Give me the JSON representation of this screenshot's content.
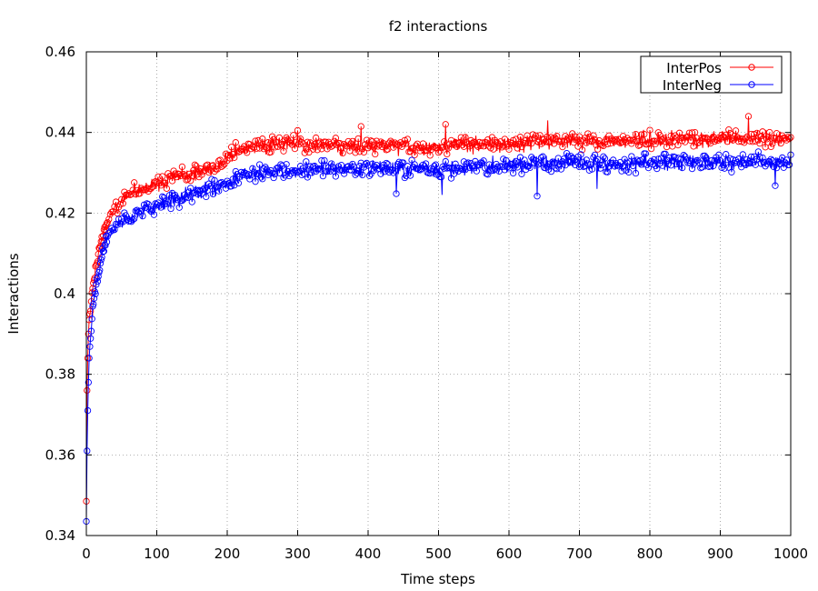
{
  "chart_data": {
    "type": "line",
    "title": "f2 interactions",
    "xlabel": "Time steps",
    "ylabel": "Interactions",
    "xlim": [
      0,
      1000
    ],
    "ylim": [
      0.34,
      0.46
    ],
    "xticks": [
      0,
      100,
      200,
      300,
      400,
      500,
      600,
      700,
      800,
      900,
      1000
    ],
    "yticks": [
      0.34,
      0.36,
      0.38,
      0.4,
      0.42,
      0.44,
      0.46
    ],
    "ytick_labels": [
      "0.34",
      "0.36",
      "0.38",
      "0.4",
      "0.42",
      "0.44",
      "0.46"
    ],
    "grid": true,
    "legend_position": "top-right",
    "marker": "open-circle",
    "series": [
      {
        "name": "InterPos",
        "color": "#ff0000",
        "x": [
          0,
          1,
          2,
          3,
          4,
          6,
          8,
          10,
          13,
          16,
          20,
          25,
          30,
          40,
          50,
          60,
          70,
          80,
          90,
          100,
          110,
          120,
          130,
          140,
          150,
          160,
          170,
          180,
          190,
          200,
          210,
          220,
          230,
          240,
          250,
          260,
          270,
          280,
          290,
          300,
          310,
          320,
          330,
          340,
          350,
          360,
          370,
          380,
          390,
          400,
          410,
          420,
          430,
          440,
          450,
          460,
          470,
          480,
          490,
          500,
          510,
          520,
          530,
          540,
          550,
          560,
          570,
          580,
          590,
          600,
          610,
          620,
          630,
          640,
          650,
          660,
          670,
          680,
          690,
          700,
          710,
          720,
          730,
          740,
          750,
          760,
          770,
          780,
          790,
          800,
          810,
          820,
          830,
          840,
          850,
          860,
          870,
          880,
          890,
          900,
          910,
          920,
          930,
          940,
          950,
          960,
          970,
          980,
          990,
          1000
        ],
        "y": [
          0.3485,
          0.376,
          0.384,
          0.39,
          0.3935,
          0.397,
          0.4,
          0.403,
          0.406,
          0.409,
          0.412,
          0.415,
          0.418,
          0.421,
          0.423,
          0.4245,
          0.4255,
          0.4262,
          0.4268,
          0.4275,
          0.428,
          0.4285,
          0.429,
          0.4295,
          0.43,
          0.4305,
          0.431,
          0.4315,
          0.432,
          0.4335,
          0.435,
          0.4358,
          0.4362,
          0.4365,
          0.4368,
          0.437,
          0.4372,
          0.4373,
          0.4372,
          0.4371,
          0.437,
          0.4369,
          0.4368,
          0.4366,
          0.4365,
          0.4364,
          0.4364,
          0.4365,
          0.4366,
          0.4367,
          0.4368,
          0.4368,
          0.4368,
          0.4367,
          0.4366,
          0.4365,
          0.4364,
          0.4364,
          0.4364,
          0.4365,
          0.4366,
          0.4367,
          0.4368,
          0.4368,
          0.4368,
          0.4369,
          0.437,
          0.4371,
          0.4371,
          0.4372,
          0.4373,
          0.4374,
          0.4375,
          0.4376,
          0.4377,
          0.4378,
          0.4379,
          0.438,
          0.438,
          0.4379,
          0.4378,
          0.4377,
          0.4376,
          0.4376,
          0.4377,
          0.4378,
          0.4379,
          0.438,
          0.4381,
          0.4382,
          0.4383,
          0.4383,
          0.4382,
          0.4381,
          0.438,
          0.4379,
          0.4379,
          0.438,
          0.4381,
          0.4382,
          0.4383,
          0.4384,
          0.4385,
          0.4386,
          0.4386,
          0.4385,
          0.4384,
          0.4383,
          0.4382,
          0.4381
        ],
        "noise": 0.0022,
        "spikes": [
          [
            390,
            0.4415
          ],
          [
            510,
            0.442
          ],
          [
            655,
            0.443
          ],
          [
            940,
            0.444
          ],
          [
            300,
            0.4405
          ]
        ]
      },
      {
        "name": "InterNeg",
        "color": "#0000ff",
        "x": [
          0,
          1,
          2,
          3,
          4,
          6,
          8,
          10,
          13,
          16,
          20,
          25,
          30,
          40,
          50,
          60,
          70,
          80,
          90,
          100,
          110,
          120,
          130,
          140,
          150,
          160,
          170,
          180,
          190,
          200,
          210,
          220,
          230,
          240,
          250,
          260,
          270,
          280,
          290,
          300,
          310,
          320,
          330,
          340,
          350,
          360,
          370,
          380,
          390,
          400,
          410,
          420,
          430,
          440,
          450,
          460,
          470,
          480,
          490,
          500,
          510,
          520,
          530,
          540,
          550,
          560,
          570,
          580,
          590,
          600,
          610,
          620,
          630,
          640,
          650,
          660,
          670,
          680,
          690,
          700,
          710,
          720,
          730,
          740,
          750,
          760,
          770,
          780,
          790,
          800,
          810,
          820,
          830,
          840,
          850,
          860,
          870,
          880,
          890,
          900,
          910,
          920,
          930,
          940,
          950,
          960,
          970,
          980,
          990,
          1000
        ],
        "y": [
          0.3435,
          0.361,
          0.371,
          0.378,
          0.384,
          0.389,
          0.3935,
          0.3975,
          0.401,
          0.404,
          0.4075,
          0.4115,
          0.414,
          0.4165,
          0.418,
          0.419,
          0.4198,
          0.4205,
          0.4212,
          0.4218,
          0.4225,
          0.4232,
          0.4238,
          0.4243,
          0.4248,
          0.4252,
          0.4256,
          0.426,
          0.4264,
          0.4272,
          0.4285,
          0.4292,
          0.4297,
          0.43,
          0.4302,
          0.4304,
          0.4305,
          0.4306,
          0.4307,
          0.4308,
          0.4309,
          0.4309,
          0.431,
          0.431,
          0.431,
          0.431,
          0.431,
          0.431,
          0.431,
          0.431,
          0.431,
          0.431,
          0.431,
          0.431,
          0.4309,
          0.4308,
          0.4307,
          0.4306,
          0.4306,
          0.4307,
          0.4308,
          0.4309,
          0.431,
          0.4311,
          0.4312,
          0.4313,
          0.4314,
          0.4315,
          0.4316,
          0.4317,
          0.4318,
          0.4319,
          0.432,
          0.4321,
          0.4322,
          0.4323,
          0.4324,
          0.4325,
          0.4325,
          0.4325,
          0.4324,
          0.4323,
          0.4322,
          0.4321,
          0.4321,
          0.4322,
          0.4323,
          0.4324,
          0.4325,
          0.4326,
          0.4327,
          0.4327,
          0.4327,
          0.4326,
          0.4325,
          0.4324,
          0.4323,
          0.4323,
          0.4324,
          0.4325,
          0.4326,
          0.4327,
          0.4328,
          0.4329,
          0.4329,
          0.4328,
          0.4327,
          0.4326,
          0.4325,
          0.4324
        ],
        "noise": 0.0022,
        "spikes": [
          [
            640,
            0.4242
          ],
          [
            440,
            0.4248
          ],
          [
            505,
            0.4245
          ],
          [
            725,
            0.426
          ],
          [
            978,
            0.4268
          ]
        ]
      }
    ]
  }
}
